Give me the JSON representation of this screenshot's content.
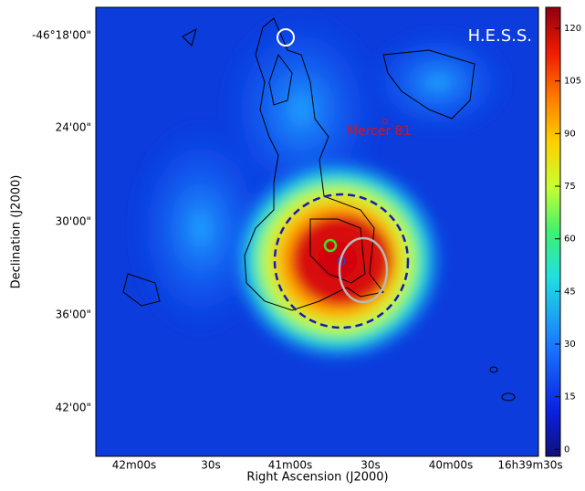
{
  "chart_data": {
    "type": "skymap",
    "title": "H.E.S.S.",
    "xlabel": "Right Ascension (J2000)",
    "ylabel": "Declination (J2000)",
    "xtick_labels": [
      "42m00s",
      "30s",
      "41m00s",
      "30s",
      "40m00s",
      "16h39m30s"
    ],
    "ytick_labels": [
      "-46°18'00\"",
      "24'00\"",
      "30'00\"",
      "36'00\"",
      "42'00\""
    ],
    "annotation": "Mercer 81",
    "colorbar": {
      "lim": [
        -2,
        126
      ],
      "ticks": [
        0,
        15,
        30,
        45,
        60,
        75,
        90,
        105,
        120
      ]
    }
  }
}
